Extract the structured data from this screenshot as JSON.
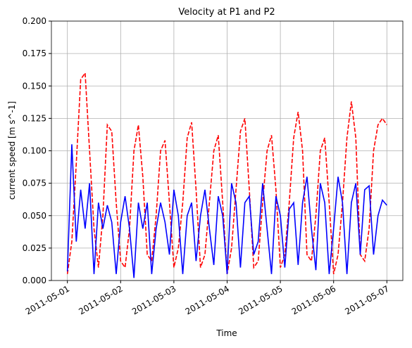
{
  "chart_data": {
    "type": "line",
    "title": "Velocity at P1 and P2",
    "xlabel": "Time",
    "ylabel": "current speed [m s^-1]",
    "x": [
      "2011-05-01T00:00",
      "2011-05-01T02:00",
      "2011-05-01T04:00",
      "2011-05-01T06:00",
      "2011-05-01T08:00",
      "2011-05-01T10:00",
      "2011-05-01T12:00",
      "2011-05-01T14:00",
      "2011-05-01T16:00",
      "2011-05-01T18:00",
      "2011-05-01T20:00",
      "2011-05-01T22:00",
      "2011-05-02T00:00",
      "2011-05-02T02:00",
      "2011-05-02T04:00",
      "2011-05-02T06:00",
      "2011-05-02T08:00",
      "2011-05-02T10:00",
      "2011-05-02T12:00",
      "2011-05-02T14:00",
      "2011-05-02T16:00",
      "2011-05-02T18:00",
      "2011-05-02T20:00",
      "2011-05-02T22:00",
      "2011-05-03T00:00",
      "2011-05-03T02:00",
      "2011-05-03T04:00",
      "2011-05-03T06:00",
      "2011-05-03T08:00",
      "2011-05-03T10:00",
      "2011-05-03T12:00",
      "2011-05-03T14:00",
      "2011-05-03T16:00",
      "2011-05-03T18:00",
      "2011-05-03T20:00",
      "2011-05-03T22:00",
      "2011-05-04T00:00",
      "2011-05-04T02:00",
      "2011-05-04T04:00",
      "2011-05-04T06:00",
      "2011-05-04T08:00",
      "2011-05-04T10:00",
      "2011-05-04T12:00",
      "2011-05-04T14:00",
      "2011-05-04T16:00",
      "2011-05-04T18:00",
      "2011-05-04T20:00",
      "2011-05-04T22:00",
      "2011-05-05T00:00",
      "2011-05-05T02:00",
      "2011-05-05T04:00",
      "2011-05-05T06:00",
      "2011-05-05T08:00",
      "2011-05-05T10:00",
      "2011-05-05T12:00",
      "2011-05-05T14:00",
      "2011-05-05T16:00",
      "2011-05-05T18:00",
      "2011-05-05T20:00",
      "2011-05-05T22:00",
      "2011-05-06T00:00",
      "2011-05-06T02:00",
      "2011-05-06T04:00",
      "2011-05-06T06:00",
      "2011-05-06T08:00",
      "2011-05-06T10:00",
      "2011-05-06T12:00",
      "2011-05-06T14:00",
      "2011-05-06T16:00",
      "2011-05-06T18:00",
      "2011-05-06T20:00",
      "2011-05-06T22:00",
      "2011-05-07T00:00"
    ],
    "series": [
      {
        "color": "#ff0000",
        "style": "dashed",
        "values": [
          0.005,
          0.03,
          0.09,
          0.155,
          0.16,
          0.1,
          0.04,
          0.01,
          0.05,
          0.12,
          0.115,
          0.06,
          0.015,
          0.01,
          0.04,
          0.1,
          0.12,
          0.08,
          0.02,
          0.015,
          0.05,
          0.1,
          0.108,
          0.06,
          0.01,
          0.025,
          0.06,
          0.11,
          0.122,
          0.07,
          0.01,
          0.02,
          0.06,
          0.1,
          0.112,
          0.06,
          0.005,
          0.025,
          0.07,
          0.115,
          0.125,
          0.07,
          0.01,
          0.015,
          0.06,
          0.1,
          0.112,
          0.07,
          0.01,
          0.02,
          0.06,
          0.11,
          0.13,
          0.1,
          0.02,
          0.015,
          0.05,
          0.1,
          0.11,
          0.06,
          0.005,
          0.02,
          0.06,
          0.11,
          0.138,
          0.11,
          0.02,
          0.015,
          0.04,
          0.1,
          0.12,
          0.125,
          0.12
        ]
      },
      {
        "color": "#0000ff",
        "style": "solid",
        "values": [
          0.007,
          0.105,
          0.03,
          0.07,
          0.04,
          0.075,
          0.005,
          0.06,
          0.04,
          0.058,
          0.045,
          0.005,
          0.045,
          0.065,
          0.04,
          0.002,
          0.06,
          0.04,
          0.06,
          0.005,
          0.04,
          0.06,
          0.045,
          0.02,
          0.07,
          0.05,
          0.005,
          0.05,
          0.06,
          0.015,
          0.05,
          0.07,
          0.04,
          0.012,
          0.065,
          0.05,
          0.005,
          0.075,
          0.06,
          0.01,
          0.06,
          0.065,
          0.02,
          0.03,
          0.075,
          0.04,
          0.005,
          0.065,
          0.05,
          0.01,
          0.055,
          0.06,
          0.012,
          0.06,
          0.08,
          0.04,
          0.008,
          0.075,
          0.06,
          0.005,
          0.04,
          0.08,
          0.06,
          0.005,
          0.06,
          0.075,
          0.02,
          0.07,
          0.073,
          0.02,
          0.05,
          0.062,
          0.058
        ]
      }
    ],
    "xlim": [
      "2011-04-30T16:48",
      "2011-05-07T07:12"
    ],
    "xticks": [
      "2011-05-01",
      "2011-05-02",
      "2011-05-03",
      "2011-05-04",
      "2011-05-05",
      "2011-05-06",
      "2011-05-07"
    ],
    "ylim": [
      0,
      0.2
    ],
    "yticks": [
      {
        "value": 0,
        "label": "0.000"
      },
      {
        "value": 0.025,
        "label": "0.025"
      },
      {
        "value": 0.05,
        "label": "0.050"
      },
      {
        "value": 0.075,
        "label": "0.075"
      },
      {
        "value": 0.1,
        "label": "0.100"
      },
      {
        "value": 0.125,
        "label": "0.125"
      },
      {
        "value": 0.15,
        "label": "0.150"
      },
      {
        "value": 0.175,
        "label": "0.175"
      },
      {
        "value": 0.2,
        "label": "0.200"
      }
    ],
    "grid": true
  }
}
